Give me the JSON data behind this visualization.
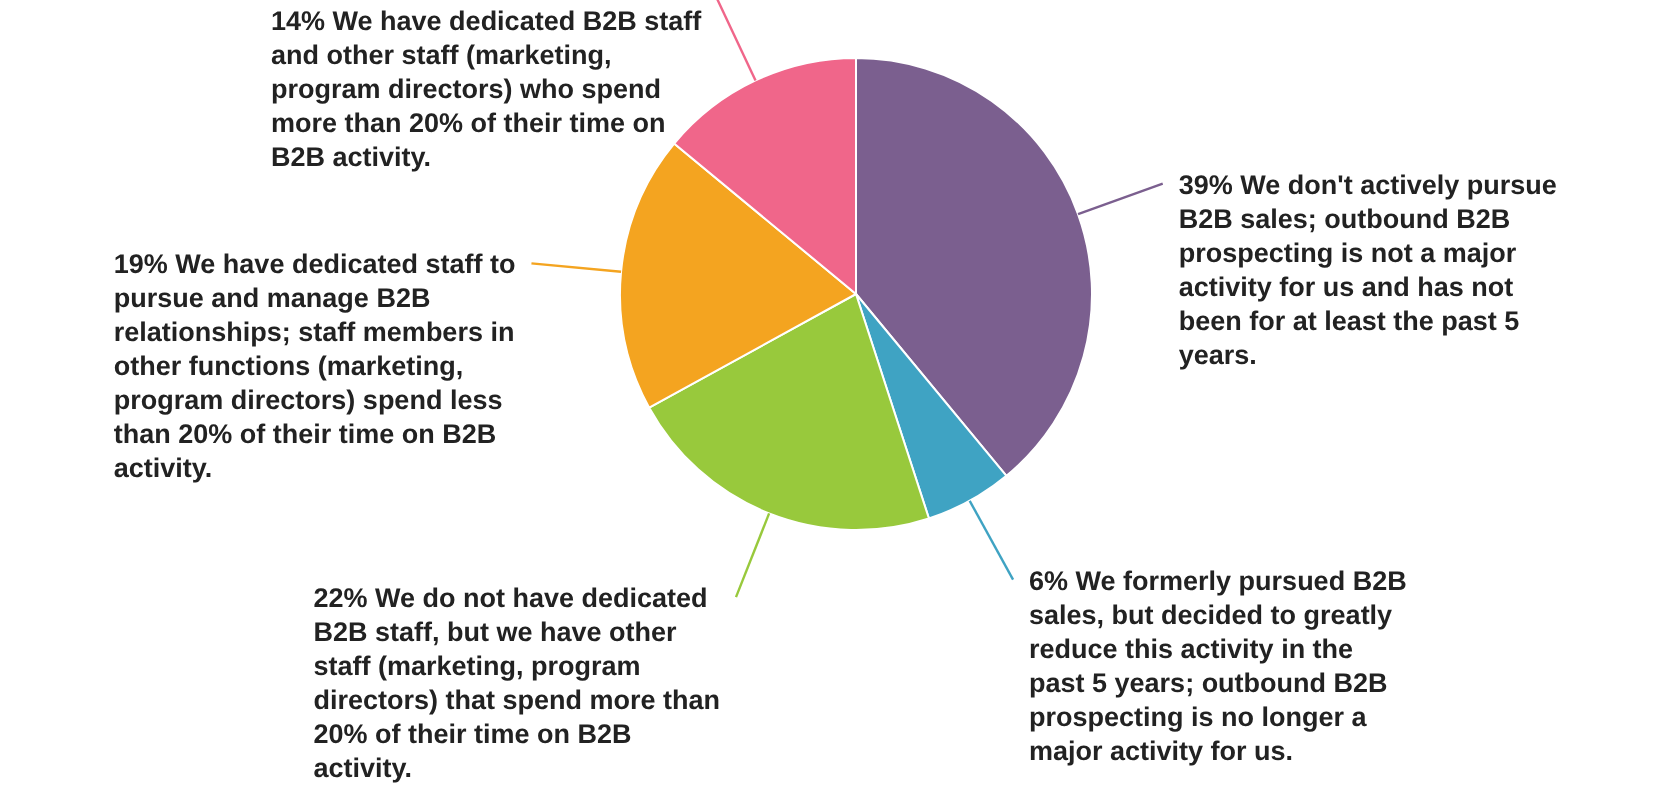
{
  "chart_data": {
    "type": "pie",
    "value_labels": [
      "39%",
      "6%",
      "22%",
      "19%",
      "14%"
    ],
    "categories": [
      "We don't actively pursue B2B sales; outbound B2B prospecting is not a major activity for us and has not been for at least the past 5 years.",
      "We formerly pursued B2B sales, but decided to greatly reduce this activity in the past 5 years; outbound B2B prospecting is no longer a major activity for us.",
      "We do not have dedicated B2B staff, but we have other staff (marketing, program directors) that spend more than 20% of their time on B2B activity.",
      "We have dedicated staff to pursue and manage B2B relationships; staff members in other functions (marketing, program directors) spend less than 20% of their time on B2B activity.",
      "We have dedicated B2B staff and other staff (marketing, program directors) who spend more than 20% of their time on B2B activity."
    ],
    "values": [
      39,
      6,
      22,
      19,
      14
    ],
    "colors": [
      "#7b5f8f",
      "#3fa3c3",
      "#98c93c",
      "#f4a420",
      "#f0668a"
    ]
  }
}
